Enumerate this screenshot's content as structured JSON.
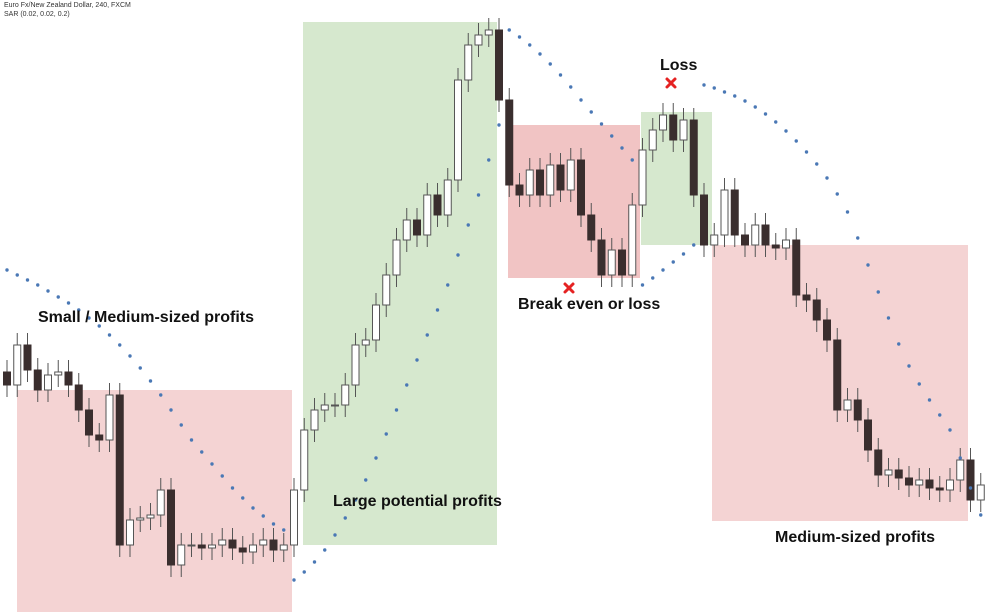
{
  "header": {
    "symbol": "Euro Fx/New Zealand Dollar, 240, FXCM",
    "indicator": "SAR (0.02, 0.02, 0.2)"
  },
  "annotations": {
    "zone1": "Small / Medium-sized profits",
    "zone2": "Large potential profits",
    "zone3": "Break even or loss",
    "zone4": "Loss",
    "zone5": "Medium-sized profits"
  },
  "chart_data": {
    "type": "candlestick",
    "ylim": [
      0,
      612
    ],
    "up_color": "#ffffff",
    "down_color": "#3a2e2e",
    "wick_color": "#555555",
    "open": [
      240,
      227,
      267,
      242,
      222,
      237,
      240,
      227,
      202,
      177,
      172,
      217,
      67,
      92,
      94,
      97,
      122,
      47,
      67,
      67,
      64,
      67,
      72,
      64,
      60,
      67,
      72,
      62,
      67,
      122,
      182,
      202,
      207,
      207,
      227,
      267,
      272,
      307,
      337,
      372,
      392,
      377,
      417,
      397,
      432,
      532,
      567,
      577,
      582,
      512,
      427,
      417,
      442,
      417,
      447,
      422,
      452,
      397,
      372,
      337,
      362,
      337,
      407,
      462,
      482,
      497,
      472,
      492,
      417,
      367,
      377,
      422,
      377,
      367,
      387,
      367,
      364,
      372,
      317,
      312,
      292,
      272,
      202,
      212,
      192,
      162,
      137,
      142,
      134,
      127,
      132,
      124,
      122,
      132,
      152,
      112
    ],
    "high": [
      252,
      279,
      279,
      254,
      249,
      252,
      252,
      239,
      214,
      189,
      229,
      229,
      104,
      106,
      109,
      134,
      134,
      79,
      79,
      79,
      79,
      84,
      84,
      76,
      79,
      84,
      84,
      79,
      134,
      194,
      214,
      219,
      219,
      239,
      279,
      284,
      319,
      349,
      384,
      404,
      404,
      429,
      429,
      444,
      544,
      579,
      589,
      594,
      594,
      524,
      439,
      454,
      454,
      459,
      459,
      464,
      464,
      409,
      384,
      374,
      374,
      419,
      474,
      494,
      509,
      509,
      504,
      504,
      429,
      389,
      434,
      434,
      389,
      399,
      399,
      379,
      384,
      384,
      329,
      324,
      304,
      284,
      224,
      224,
      204,
      174,
      154,
      154,
      146,
      144,
      144,
      136,
      144,
      164,
      164,
      139
    ],
    "low": [
      215,
      215,
      230,
      210,
      210,
      225,
      215,
      190,
      165,
      160,
      160,
      55,
      55,
      80,
      82,
      85,
      35,
      35,
      55,
      52,
      52,
      55,
      52,
      48,
      48,
      55,
      50,
      50,
      55,
      110,
      170,
      190,
      195,
      195,
      215,
      255,
      260,
      295,
      325,
      360,
      365,
      365,
      385,
      385,
      420,
      520,
      555,
      565,
      500,
      415,
      405,
      405,
      405,
      405,
      410,
      410,
      385,
      360,
      325,
      325,
      325,
      325,
      395,
      450,
      470,
      460,
      460,
      405,
      355,
      355,
      365,
      365,
      355,
      355,
      355,
      352,
      352,
      305,
      300,
      280,
      260,
      190,
      190,
      180,
      150,
      125,
      125,
      122,
      115,
      115,
      112,
      110,
      110,
      120,
      100,
      100
    ],
    "close": [
      227,
      267,
      242,
      222,
      237,
      240,
      227,
      202,
      177,
      172,
      217,
      67,
      92,
      94,
      97,
      122,
      47,
      67,
      67,
      64,
      67,
      72,
      64,
      60,
      67,
      72,
      62,
      67,
      122,
      182,
      202,
      207,
      207,
      227,
      267,
      272,
      307,
      337,
      372,
      392,
      377,
      417,
      397,
      432,
      532,
      567,
      577,
      582,
      512,
      427,
      417,
      442,
      417,
      447,
      422,
      452,
      397,
      372,
      337,
      362,
      337,
      407,
      462,
      482,
      497,
      472,
      492,
      417,
      367,
      377,
      422,
      377,
      367,
      387,
      367,
      364,
      372,
      317,
      312,
      292,
      272,
      202,
      212,
      192,
      162,
      137,
      142,
      134,
      127,
      132,
      124,
      122,
      132,
      152,
      112,
      127
    ],
    "sar": {
      "color": "#4a78b5",
      "values": [
        342,
        337,
        332,
        327,
        321,
        315,
        309,
        302,
        294,
        286,
        277,
        267,
        256,
        244,
        231,
        217,
        202,
        187,
        172,
        160,
        148,
        136,
        124,
        114,
        104,
        96,
        88,
        82,
        32,
        40,
        50,
        62,
        77,
        94,
        112,
        132,
        154,
        178,
        202,
        227,
        252,
        277,
        302,
        327,
        357,
        387,
        417,
        452,
        487,
        582,
        575,
        567,
        558,
        548,
        537,
        525,
        512,
        500,
        488,
        476,
        464,
        452,
        327,
        334,
        342,
        350,
        358,
        367,
        527,
        524,
        520,
        516,
        511,
        505,
        498,
        490,
        481,
        471,
        460,
        448,
        434,
        418,
        400,
        374,
        347,
        320,
        294,
        268,
        246,
        228,
        212,
        197,
        182,
        154,
        124,
        97
      ]
    }
  }
}
